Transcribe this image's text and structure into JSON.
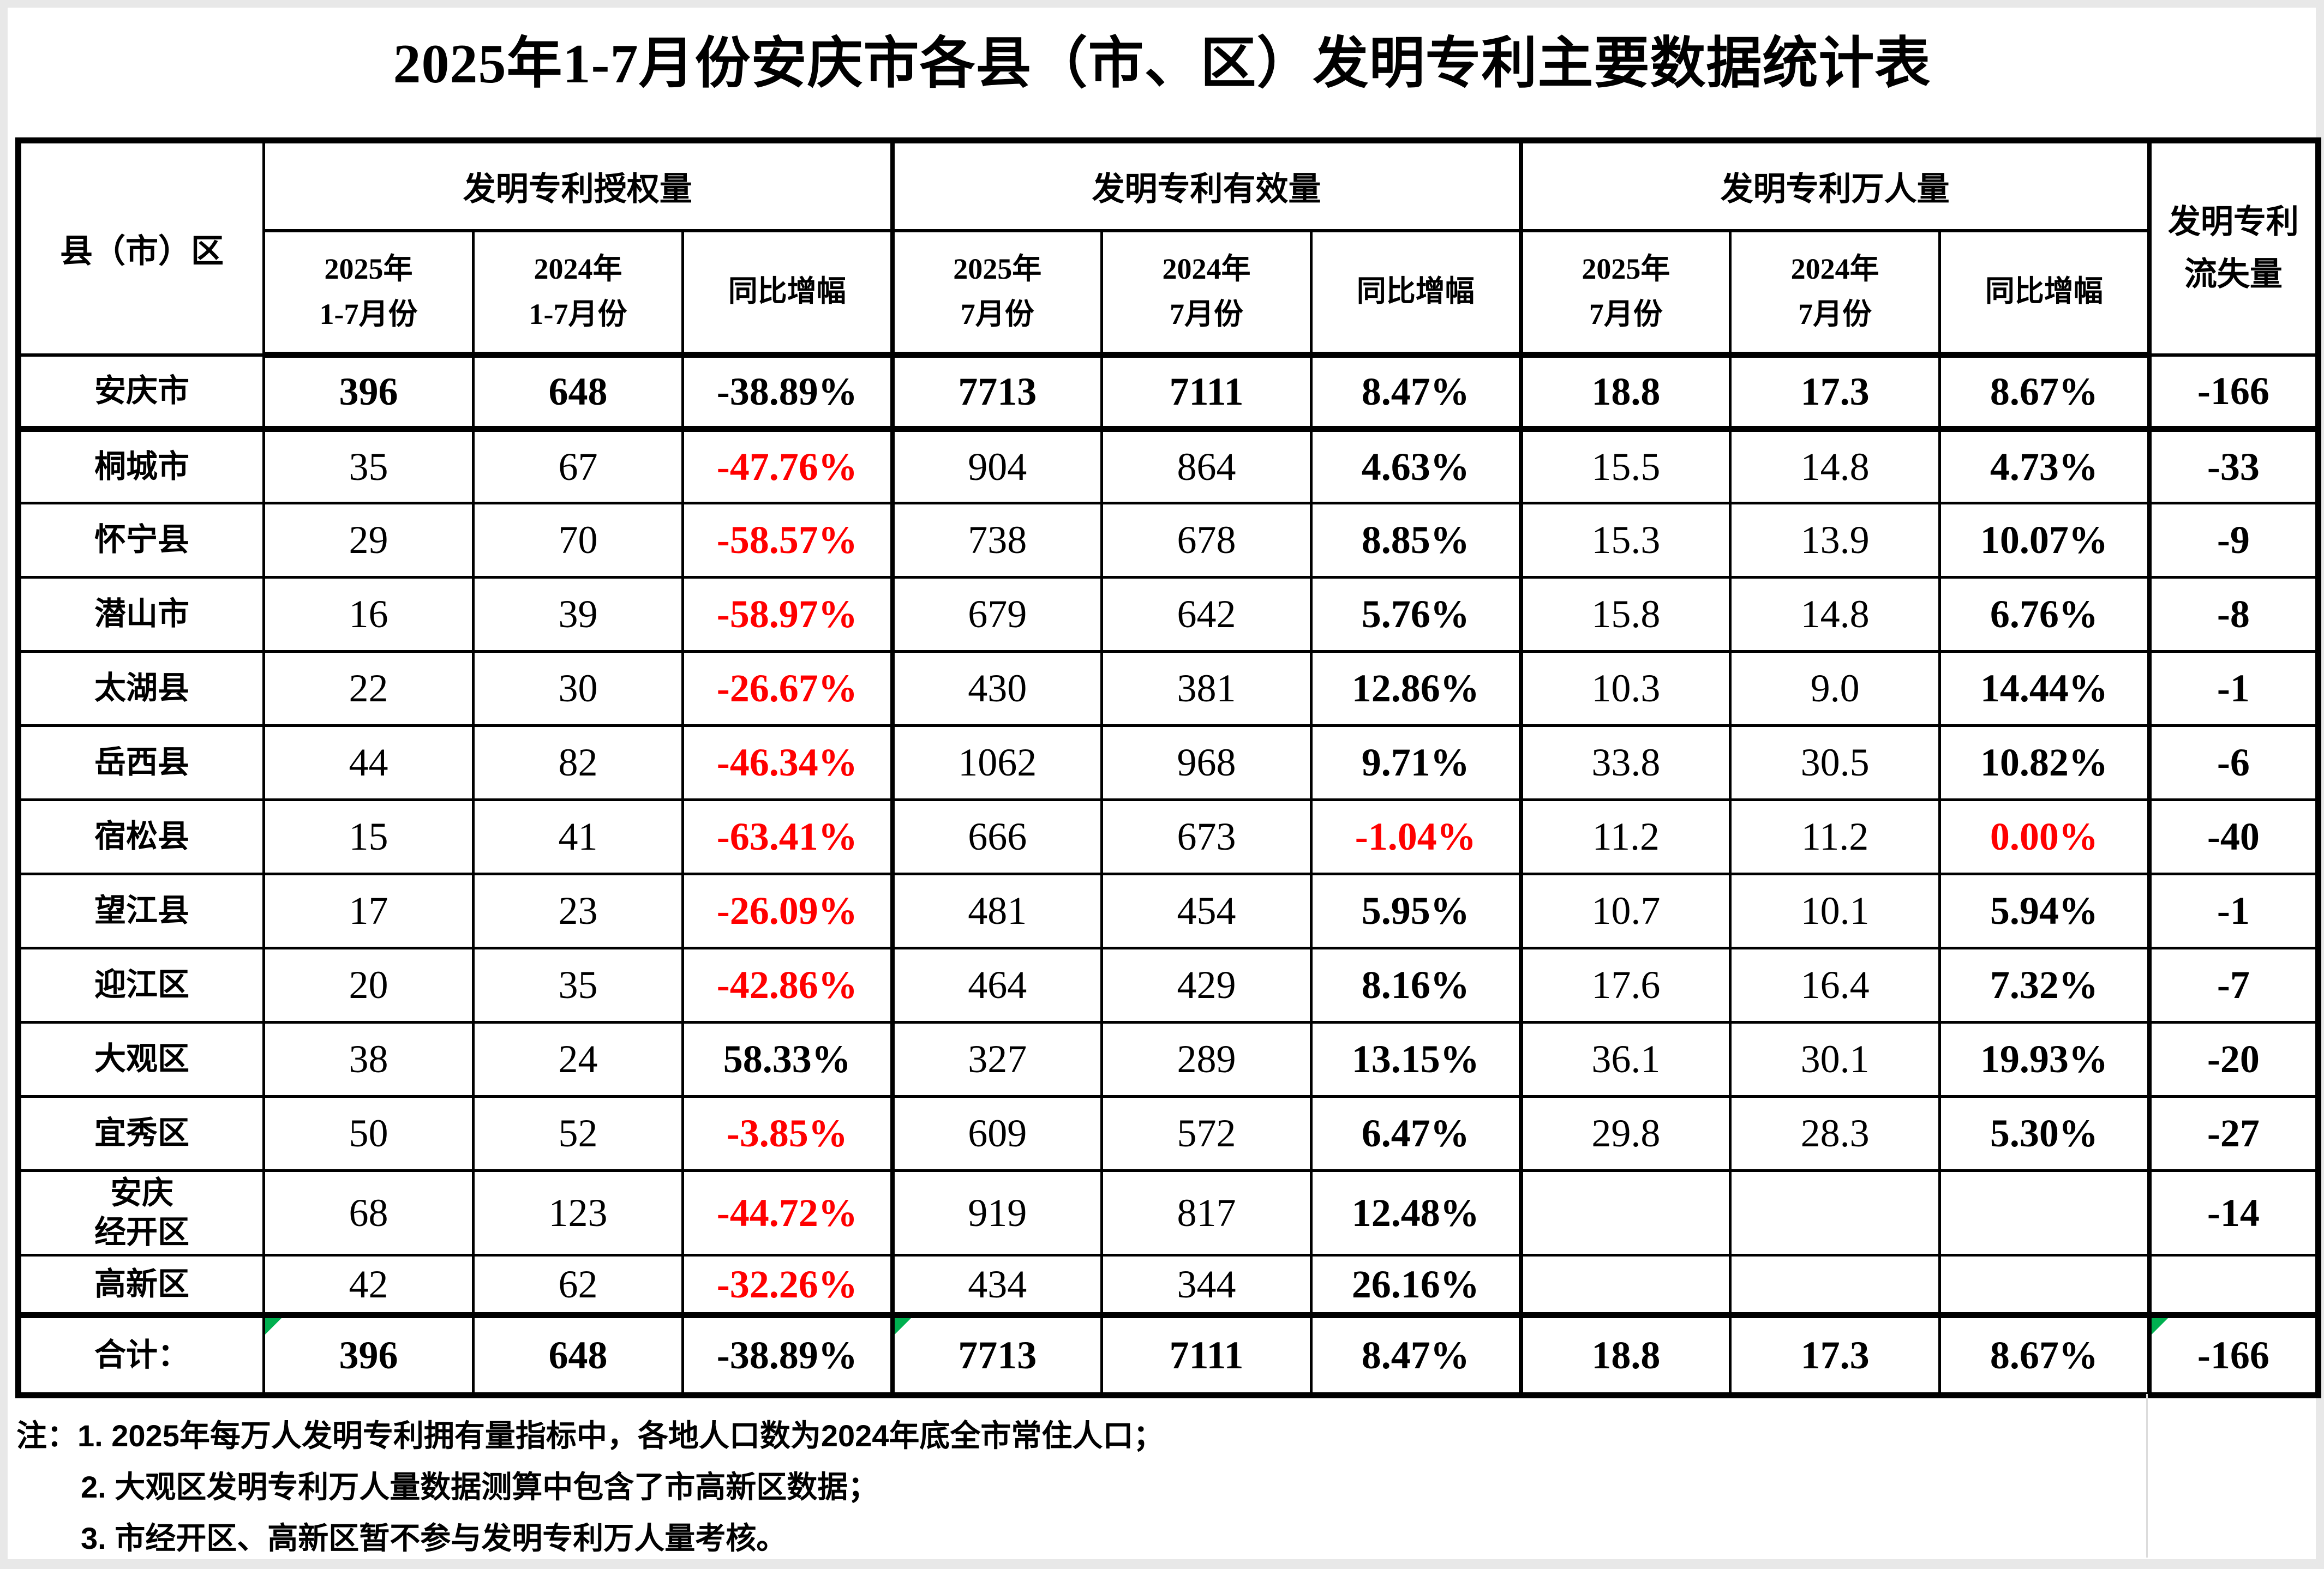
{
  "title": "2025年1-7月份安庆市各县（市、区）发明专利主要数据统计表",
  "header": {
    "region": "县（市）区",
    "groups": [
      {
        "label": "发明专利授权量",
        "cols": [
          "2025年\n1-7月份",
          "2024年\n1-7月份",
          "同比增幅"
        ]
      },
      {
        "label": "发明专利有效量",
        "cols": [
          "2025年\n7月份",
          "2024年\n7月份",
          "同比增幅"
        ]
      },
      {
        "label": "发明专利万人量",
        "cols": [
          "2025年\n7月份",
          "2024年\n7月份",
          "同比增幅"
        ]
      }
    ],
    "loss": "发明专利\n流失量"
  },
  "rows": [
    {
      "name": "安庆市",
      "bold": true,
      "values": [
        "396",
        "648",
        "-38.89%",
        "7713",
        "7111",
        "8.47%",
        "18.8",
        "17.3",
        "8.67%",
        "-166"
      ]
    },
    {
      "name": "桐城市",
      "red": [
        2
      ],
      "values": [
        "35",
        "67",
        "-47.76%",
        "904",
        "864",
        "4.63%",
        "15.5",
        "14.8",
        "4.73%",
        "-33"
      ]
    },
    {
      "name": "怀宁县",
      "red": [
        2
      ],
      "values": [
        "29",
        "70",
        "-58.57%",
        "738",
        "678",
        "8.85%",
        "15.3",
        "13.9",
        "10.07%",
        "-9"
      ]
    },
    {
      "name": "潜山市",
      "red": [
        2
      ],
      "values": [
        "16",
        "39",
        "-58.97%",
        "679",
        "642",
        "5.76%",
        "15.8",
        "14.8",
        "6.76%",
        "-8"
      ]
    },
    {
      "name": "太湖县",
      "red": [
        2
      ],
      "values": [
        "22",
        "30",
        "-26.67%",
        "430",
        "381",
        "12.86%",
        "10.3",
        "9.0",
        "14.44%",
        "-1"
      ]
    },
    {
      "name": "岳西县",
      "red": [
        2
      ],
      "values": [
        "44",
        "82",
        "-46.34%",
        "1062",
        "968",
        "9.71%",
        "33.8",
        "30.5",
        "10.82%",
        "-6"
      ]
    },
    {
      "name": "宿松县",
      "red": [
        2,
        5,
        8
      ],
      "values": [
        "15",
        "41",
        "-63.41%",
        "666",
        "673",
        "-1.04%",
        "11.2",
        "11.2",
        "0.00%",
        "-40"
      ]
    },
    {
      "name": "望江县",
      "red": [
        2
      ],
      "values": [
        "17",
        "23",
        "-26.09%",
        "481",
        "454",
        "5.95%",
        "10.7",
        "10.1",
        "5.94%",
        "-1"
      ]
    },
    {
      "name": "迎江区",
      "red": [
        2
      ],
      "values": [
        "20",
        "35",
        "-42.86%",
        "464",
        "429",
        "8.16%",
        "17.6",
        "16.4",
        "7.32%",
        "-7"
      ]
    },
    {
      "name": "大观区",
      "values": [
        "38",
        "24",
        "58.33%",
        "327",
        "289",
        "13.15%",
        "36.1",
        "30.1",
        "19.93%",
        "-20"
      ]
    },
    {
      "name": "宜秀区",
      "red": [
        2
      ],
      "values": [
        "50",
        "52",
        "-3.85%",
        "609",
        "572",
        "6.47%",
        "29.8",
        "28.3",
        "5.30%",
        "-27"
      ]
    },
    {
      "name": "安庆\n经开区",
      "red": [
        2
      ],
      "values": [
        "68",
        "123",
        "-44.72%",
        "919",
        "817",
        "12.48%",
        "",
        "",
        "",
        "-14"
      ]
    },
    {
      "name": "高新区",
      "red": [
        2
      ],
      "values": [
        "42",
        "62",
        "-32.26%",
        "434",
        "344",
        "26.16%",
        "",
        "",
        "",
        ""
      ]
    },
    {
      "name": "合计：",
      "bold": true,
      "tri": [
        0,
        3,
        9
      ],
      "values": [
        "396",
        "648",
        "-38.89%",
        "7713",
        "7111",
        "8.47%",
        "18.8",
        "17.3",
        "8.67%",
        "-166"
      ]
    }
  ],
  "notes": [
    "注：1. 2025年每万人发明专利拥有量指标中，各地人口数为2024年底全市常住人口；",
    "2. 大观区发明专利万人量数据测算中包含了市高新区数据；",
    "3. 市经开区、高新区暂不参与发明专利万人量考核。"
  ],
  "colors": {
    "negative_red": "#ff0000",
    "error_marker_green": "#00b050",
    "border_black": "#000000"
  }
}
